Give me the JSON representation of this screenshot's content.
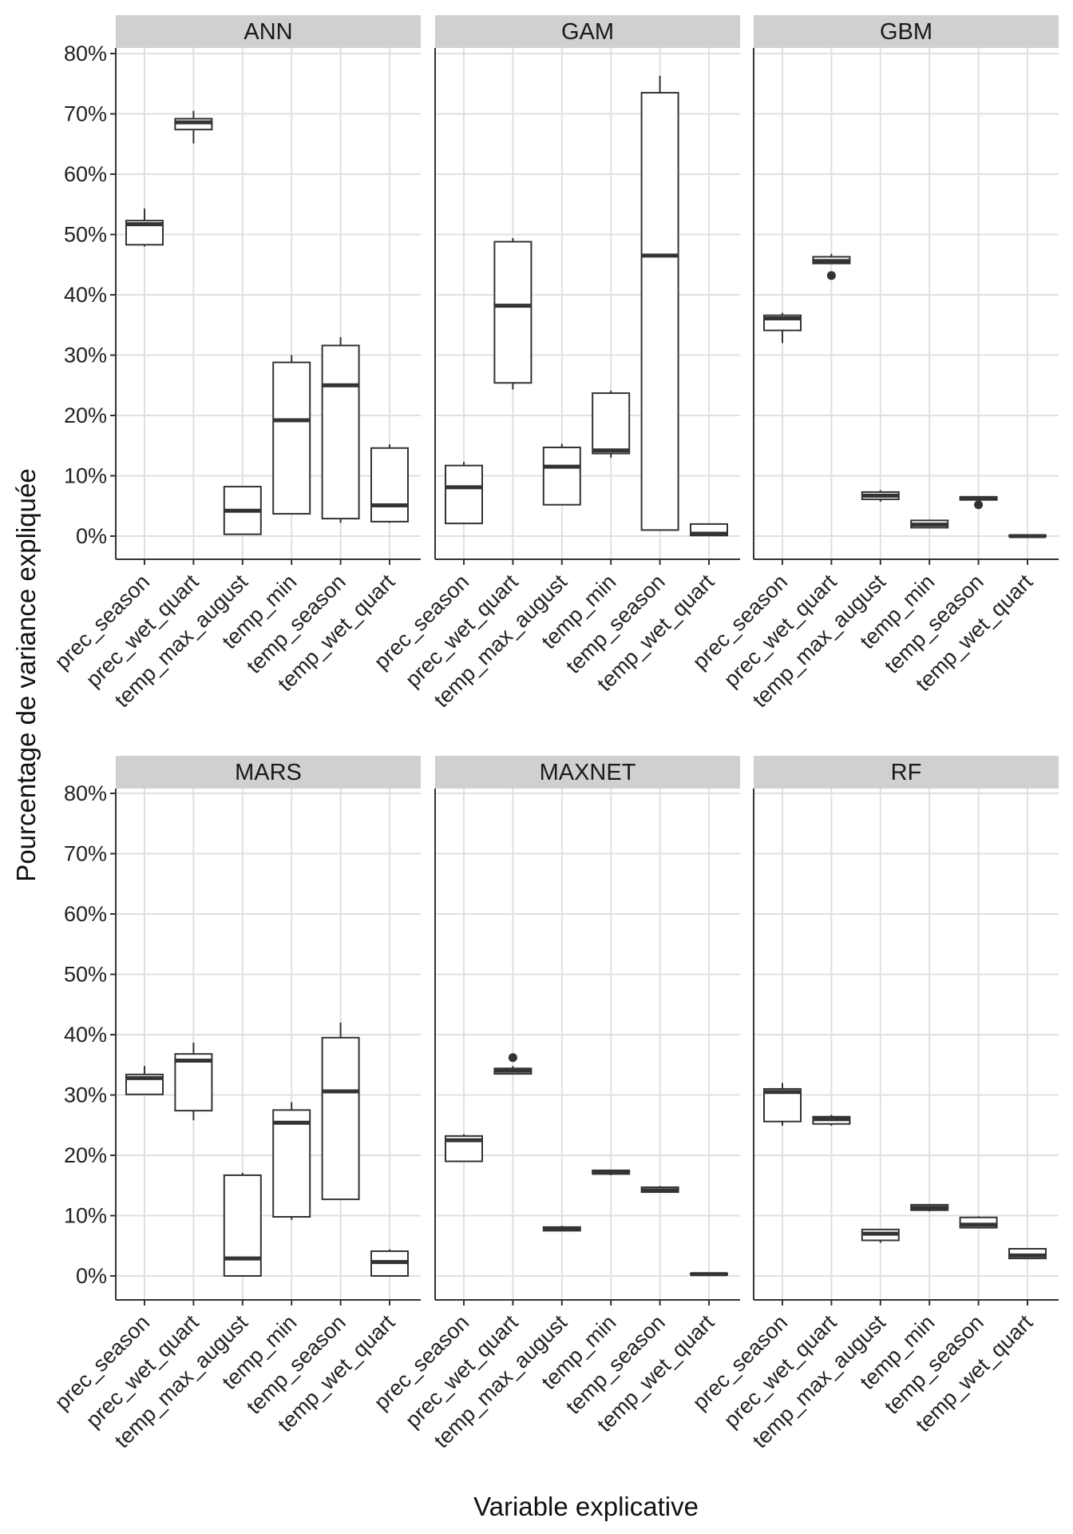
{
  "chart_data": {
    "type": "boxplot",
    "xlabel": "Variable explicative",
    "ylabel": "Pourcentage de variance expliquée",
    "ylim": [
      -0.04,
      0.8
    ],
    "yticks": [
      "0%",
      "10%",
      "20%",
      "30%",
      "40%",
      "50%",
      "60%",
      "70%",
      "80%"
    ],
    "categories": [
      "prec_season",
      "prec_wet_quart",
      "temp_max_august",
      "temp_min",
      "temp_season",
      "temp_wet_quart"
    ],
    "panels": [
      {
        "name": "ANN",
        "boxes": [
          {
            "category": "prec_season",
            "min": 0.48,
            "q1": 0.483,
            "median": 0.517,
            "q3": 0.523,
            "max": 0.543,
            "outliers": []
          },
          {
            "category": "prec_wet_quart",
            "min": 0.651,
            "q1": 0.674,
            "median": 0.686,
            "q3": 0.692,
            "max": 0.705,
            "outliers": []
          },
          {
            "category": "temp_max_august",
            "min": 0.003,
            "q1": 0.003,
            "median": 0.042,
            "q3": 0.082,
            "max": 0.082,
            "outliers": []
          },
          {
            "category": "temp_min",
            "min": 0.036,
            "q1": 0.037,
            "median": 0.192,
            "q3": 0.288,
            "max": 0.3,
            "outliers": []
          },
          {
            "category": "temp_season",
            "min": 0.022,
            "q1": 0.029,
            "median": 0.25,
            "q3": 0.316,
            "max": 0.33,
            "outliers": []
          },
          {
            "category": "temp_wet_quart",
            "min": 0.022,
            "q1": 0.024,
            "median": 0.051,
            "q3": 0.146,
            "max": 0.152,
            "outliers": []
          }
        ]
      },
      {
        "name": "GAM",
        "boxes": [
          {
            "category": "prec_season",
            "min": 0.021,
            "q1": 0.021,
            "median": 0.081,
            "q3": 0.117,
            "max": 0.123,
            "outliers": []
          },
          {
            "category": "prec_wet_quart",
            "min": 0.243,
            "q1": 0.254,
            "median": 0.382,
            "q3": 0.488,
            "max": 0.494,
            "outliers": []
          },
          {
            "category": "temp_max_august",
            "min": 0.052,
            "q1": 0.052,
            "median": 0.115,
            "q3": 0.147,
            "max": 0.153,
            "outliers": []
          },
          {
            "category": "temp_min",
            "min": 0.13,
            "q1": 0.137,
            "median": 0.142,
            "q3": 0.237,
            "max": 0.241,
            "outliers": []
          },
          {
            "category": "temp_season",
            "min": 0.01,
            "q1": 0.01,
            "median": 0.465,
            "q3": 0.735,
            "max": 0.763,
            "outliers": []
          },
          {
            "category": "temp_wet_quart",
            "min": 0.0,
            "q1": 0.001,
            "median": 0.004,
            "q3": 0.02,
            "max": 0.02,
            "outliers": []
          }
        ]
      },
      {
        "name": "GBM",
        "boxes": [
          {
            "category": "prec_season",
            "min": 0.32,
            "q1": 0.341,
            "median": 0.361,
            "q3": 0.366,
            "max": 0.37,
            "outliers": []
          },
          {
            "category": "prec_wet_quart",
            "min": 0.452,
            "q1": 0.452,
            "median": 0.456,
            "q3": 0.463,
            "max": 0.468,
            "outliers": [
              0.432
            ]
          },
          {
            "category": "temp_max_august",
            "min": 0.057,
            "q1": 0.061,
            "median": 0.067,
            "q3": 0.073,
            "max": 0.076,
            "outliers": []
          },
          {
            "category": "temp_min",
            "min": 0.013,
            "q1": 0.014,
            "median": 0.019,
            "q3": 0.026,
            "max": 0.026,
            "outliers": []
          },
          {
            "category": "temp_season",
            "min": 0.06,
            "q1": 0.06,
            "median": 0.063,
            "q3": 0.065,
            "max": 0.066,
            "outliers": [
              0.052
            ]
          },
          {
            "category": "temp_wet_quart",
            "min": 0.0,
            "q1": 0.0,
            "median": 0.0,
            "q3": 0.001,
            "max": 0.001,
            "outliers": []
          }
        ]
      },
      {
        "name": "MARS",
        "boxes": [
          {
            "category": "prec_season",
            "min": 0.301,
            "q1": 0.301,
            "median": 0.328,
            "q3": 0.334,
            "max": 0.348,
            "outliers": []
          },
          {
            "category": "prec_wet_quart",
            "min": 0.258,
            "q1": 0.274,
            "median": 0.357,
            "q3": 0.368,
            "max": 0.387,
            "outliers": []
          },
          {
            "category": "temp_max_august",
            "min": 0.0,
            "q1": 0.0,
            "median": 0.029,
            "q3": 0.167,
            "max": 0.171,
            "outliers": []
          },
          {
            "category": "temp_min",
            "min": 0.093,
            "q1": 0.098,
            "median": 0.254,
            "q3": 0.275,
            "max": 0.288,
            "outliers": []
          },
          {
            "category": "temp_season",
            "min": 0.127,
            "q1": 0.127,
            "median": 0.306,
            "q3": 0.395,
            "max": 0.42,
            "outliers": []
          },
          {
            "category": "temp_wet_quart",
            "min": 0.0,
            "q1": 0.0,
            "median": 0.023,
            "q3": 0.041,
            "max": 0.044,
            "outliers": []
          }
        ]
      },
      {
        "name": "MAXNET",
        "boxes": [
          {
            "category": "prec_season",
            "min": 0.19,
            "q1": 0.19,
            "median": 0.225,
            "q3": 0.232,
            "max": 0.235,
            "outliers": []
          },
          {
            "category": "prec_wet_quart",
            "min": 0.334,
            "q1": 0.335,
            "median": 0.34,
            "q3": 0.344,
            "max": 0.348,
            "outliers": [
              0.362
            ]
          },
          {
            "category": "temp_max_august",
            "min": 0.074,
            "q1": 0.075,
            "median": 0.078,
            "q3": 0.081,
            "max": 0.083,
            "outliers": []
          },
          {
            "category": "temp_min",
            "min": 0.167,
            "q1": 0.169,
            "median": 0.172,
            "q3": 0.175,
            "max": 0.176,
            "outliers": []
          },
          {
            "category": "temp_season",
            "min": 0.138,
            "q1": 0.139,
            "median": 0.142,
            "q3": 0.147,
            "max": 0.149,
            "outliers": []
          },
          {
            "category": "temp_wet_quart",
            "min": 0.002,
            "q1": 0.002,
            "median": 0.003,
            "q3": 0.004,
            "max": 0.005,
            "outliers": []
          }
        ]
      },
      {
        "name": "RF",
        "boxes": [
          {
            "category": "prec_season",
            "min": 0.249,
            "q1": 0.256,
            "median": 0.305,
            "q3": 0.31,
            "max": 0.32,
            "outliers": []
          },
          {
            "category": "prec_wet_quart",
            "min": 0.249,
            "q1": 0.252,
            "median": 0.26,
            "q3": 0.264,
            "max": 0.267,
            "outliers": []
          },
          {
            "category": "temp_max_august",
            "min": 0.055,
            "q1": 0.059,
            "median": 0.07,
            "q3": 0.077,
            "max": 0.077,
            "outliers": []
          },
          {
            "category": "temp_min",
            "min": 0.107,
            "q1": 0.109,
            "median": 0.113,
            "q3": 0.118,
            "max": 0.118,
            "outliers": []
          },
          {
            "category": "temp_season",
            "min": 0.079,
            "q1": 0.08,
            "median": 0.085,
            "q3": 0.097,
            "max": 0.099,
            "outliers": []
          },
          {
            "category": "temp_wet_quart",
            "min": 0.028,
            "q1": 0.029,
            "median": 0.034,
            "q3": 0.045,
            "max": 0.045,
            "outliers": []
          }
        ]
      }
    ]
  }
}
